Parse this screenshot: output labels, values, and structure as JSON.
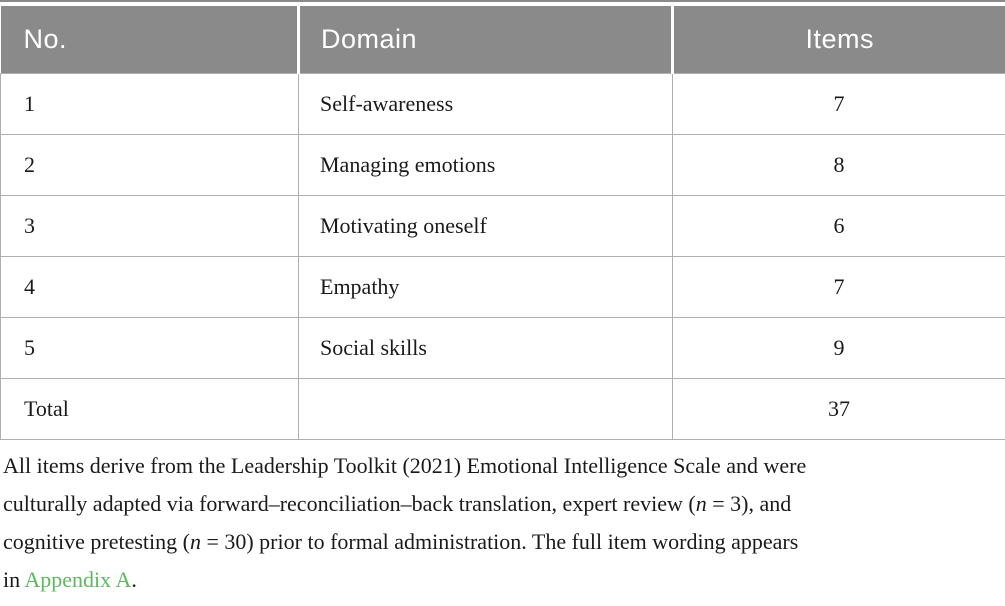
{
  "colors": {
    "header_bg": "#8a8a8a",
    "header_text": "#ffffff",
    "border": "#b0b0b0",
    "text": "#1a1a1a",
    "link": "#5bb95e"
  },
  "table": {
    "columns": [
      {
        "label": "No."
      },
      {
        "label": "Domain"
      },
      {
        "label": "Items"
      }
    ],
    "rows": [
      {
        "no": "1",
        "domain": "Self-awareness",
        "items": "7"
      },
      {
        "no": "2",
        "domain": "Managing emotions",
        "items": "8"
      },
      {
        "no": "3",
        "domain": "Motivating oneself",
        "items": "6"
      },
      {
        "no": "4",
        "domain": "Empathy",
        "items": "7"
      },
      {
        "no": "5",
        "domain": "Social skills",
        "items": "9"
      },
      {
        "no": "Total",
        "domain": "",
        "items": "37"
      }
    ]
  },
  "note": {
    "lines": [
      [
        {
          "t": "All items derive from the Leadership Toolkit (2021) Emotional Intelligence Scale and were"
        }
      ],
      [
        {
          "t": "culturally adapted via forward–reconciliation–back translation, expert review ("
        },
        {
          "t": "n",
          "s": "i"
        },
        {
          "t": " = 3), and"
        }
      ],
      [
        {
          "t": "cognitive pretesting ("
        },
        {
          "t": "n",
          "s": "i"
        },
        {
          "t": " = 30) prior to formal administration. The full item wording appears"
        }
      ],
      [
        {
          "t": "in "
        },
        {
          "t": "Appendix A",
          "s": "link"
        },
        {
          "t": "."
        }
      ]
    ]
  }
}
